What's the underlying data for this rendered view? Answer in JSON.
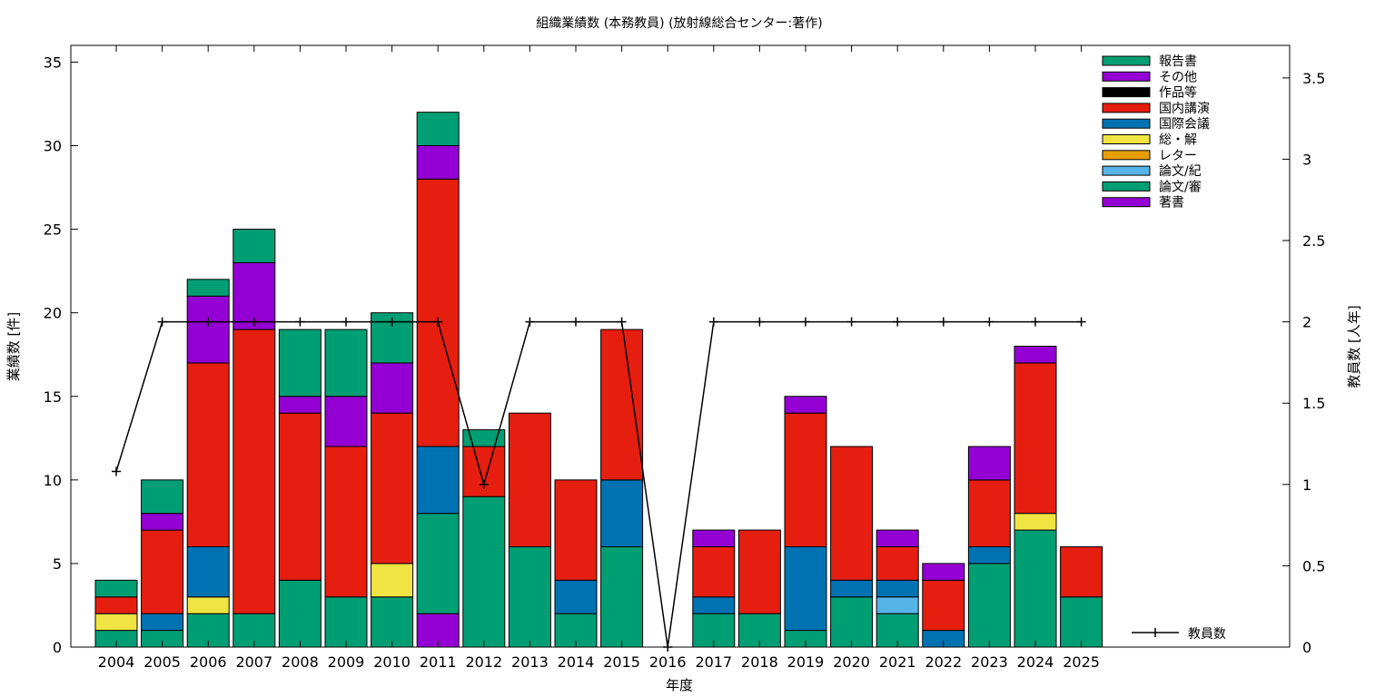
{
  "chart_data": {
    "type": "bar",
    "title": "組織業績数 (本務教員) (放射線総合センター:著作)",
    "xlabel": "年度",
    "ylabel": "業績数 [件]",
    "y2label": "教員数 [人年]",
    "ylim": [
      0,
      36
    ],
    "y2lim": [
      0,
      3.7
    ],
    "yticks": [
      0,
      5,
      10,
      15,
      20,
      25,
      30,
      35
    ],
    "y2ticks": [
      "0",
      "0.5",
      "1",
      "1.5",
      "2",
      "2.5",
      "3",
      "3.5"
    ],
    "legend_position": "top-right",
    "categories": [
      "2004",
      "2005",
      "2006",
      "2007",
      "2008",
      "2009",
      "2010",
      "2011",
      "2012",
      "2013",
      "2014",
      "2015",
      "2016",
      "2017",
      "2018",
      "2019",
      "2020",
      "2021",
      "2022",
      "2023",
      "2024",
      "2025"
    ],
    "series": [
      {
        "name": "著書",
        "color": "#9400d3",
        "values": [
          0,
          0,
          0,
          0,
          0,
          0,
          0,
          2,
          0,
          0,
          0,
          0,
          0,
          0,
          0,
          0,
          0,
          0,
          0,
          0,
          0,
          0
        ]
      },
      {
        "name": "論文/審",
        "color": "#009e73",
        "values": [
          1,
          1,
          2,
          2,
          4,
          3,
          3,
          6,
          9,
          6,
          2,
          6,
          0,
          2,
          2,
          1,
          3,
          2,
          0,
          5,
          7,
          3
        ]
      },
      {
        "name": "論文/紀",
        "color": "#56b4e9",
        "values": [
          0,
          0,
          0,
          0,
          0,
          0,
          0,
          0,
          0,
          0,
          0,
          0,
          0,
          0,
          0,
          0,
          0,
          1,
          0,
          0,
          0,
          0
        ]
      },
      {
        "name": "レター",
        "color": "#e69f00",
        "values": [
          0,
          0,
          0,
          0,
          0,
          0,
          0,
          0,
          0,
          0,
          0,
          0,
          0,
          0,
          0,
          0,
          0,
          0,
          0,
          0,
          0,
          0
        ]
      },
      {
        "name": "総・解",
        "color": "#f0e442",
        "values": [
          1,
          0,
          1,
          0,
          0,
          0,
          2,
          0,
          0,
          0,
          0,
          0,
          0,
          0,
          0,
          0,
          0,
          0,
          0,
          0,
          1,
          0
        ]
      },
      {
        "name": "国際会議",
        "color": "#0072b2",
        "values": [
          0,
          1,
          3,
          0,
          0,
          0,
          0,
          4,
          0,
          0,
          2,
          4,
          0,
          1,
          0,
          5,
          1,
          1,
          1,
          1,
          0,
          0
        ]
      },
      {
        "name": "国内講演",
        "color": "#e51e10",
        "values": [
          1,
          5,
          11,
          17,
          10,
          9,
          9,
          16,
          3,
          8,
          6,
          9,
          0,
          3,
          5,
          8,
          8,
          2,
          3,
          4,
          9,
          3
        ]
      },
      {
        "name": "作品等",
        "color": "#000000",
        "values": [
          0,
          0,
          0,
          0,
          0,
          0,
          0,
          0,
          0,
          0,
          0,
          0,
          0,
          0,
          0,
          0,
          0,
          0,
          0,
          0,
          0,
          0
        ]
      },
      {
        "name": "その他",
        "color": "#9400d3",
        "values": [
          0,
          1,
          4,
          4,
          1,
          3,
          3,
          2,
          0,
          0,
          0,
          0,
          0,
          1,
          0,
          1,
          0,
          1,
          1,
          2,
          1,
          0
        ]
      },
      {
        "name": "報告書",
        "color": "#009e73",
        "values": [
          1,
          2,
          1,
          2,
          4,
          4,
          3,
          2,
          1,
          0,
          0,
          0,
          0,
          0,
          0,
          0,
          0,
          0,
          0,
          0,
          0,
          0
        ]
      }
    ],
    "line": {
      "name": "教員数",
      "color": "#000000",
      "values": [
        1.08,
        2,
        2,
        2,
        2,
        2,
        2,
        2,
        1,
        2,
        2,
        2,
        0,
        2,
        2,
        2,
        2,
        2,
        2,
        2,
        2,
        2
      ]
    }
  }
}
